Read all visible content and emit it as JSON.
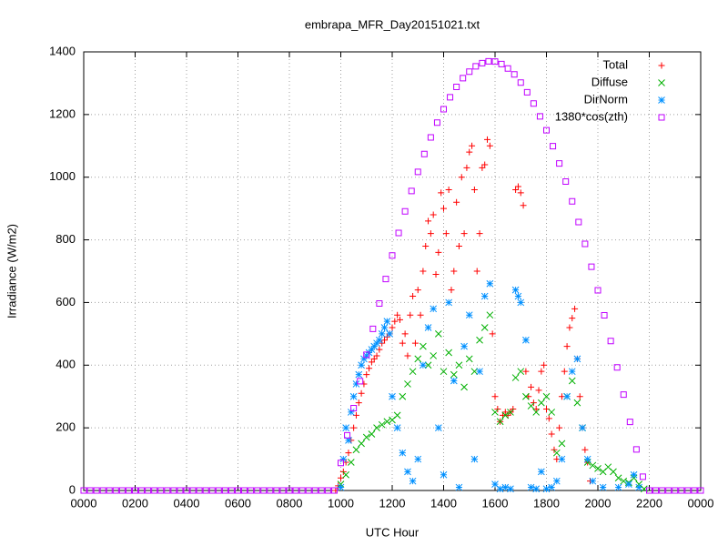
{
  "chart_data": {
    "type": "scatter",
    "title": "embrapa_MFR_Day20151021.txt",
    "x_label": "UTC Hour",
    "y_label": "Irradiance (W/m2)",
    "xlim": [
      0,
      24
    ],
    "ylim": [
      0,
      1400
    ],
    "xticks": [
      {
        "value": 0,
        "label": "0000"
      },
      {
        "value": 2,
        "label": "0200"
      },
      {
        "value": 4,
        "label": "0400"
      },
      {
        "value": 6,
        "label": "0600"
      },
      {
        "value": 8,
        "label": "0800"
      },
      {
        "value": 10,
        "label": "1000"
      },
      {
        "value": 12,
        "label": "1200"
      },
      {
        "value": 14,
        "label": "1400"
      },
      {
        "value": 16,
        "label": "1600"
      },
      {
        "value": 18,
        "label": "1800"
      },
      {
        "value": 20,
        "label": "2000"
      },
      {
        "value": 22,
        "label": "2200"
      },
      {
        "value": 24,
        "label": "0000"
      }
    ],
    "yticks": [
      0,
      200,
      400,
      600,
      800,
      1000,
      1200,
      1400
    ],
    "grid": true,
    "legend": "top-right",
    "series": [
      {
        "name": "Total",
        "color": "#ff0000",
        "marker": "plus",
        "x": [
          9.8,
          9.9,
          10.0,
          10.1,
          10.2,
          10.3,
          10.4,
          10.5,
          10.6,
          10.7,
          10.8,
          10.9,
          11.0,
          11.1,
          11.2,
          11.3,
          11.4,
          11.5,
          11.6,
          11.7,
          11.8,
          11.9,
          12.0,
          12.1,
          12.2,
          12.3,
          12.4,
          12.5,
          12.6,
          12.7,
          12.8,
          12.9,
          13.0,
          13.1,
          13.2,
          13.3,
          13.4,
          13.5,
          13.6,
          13.7,
          13.8,
          13.9,
          14.0,
          14.1,
          14.2,
          14.3,
          14.4,
          14.5,
          14.6,
          14.7,
          14.8,
          14.9,
          15.0,
          15.1,
          15.2,
          15.3,
          15.4,
          15.5,
          15.6,
          15.7,
          15.8,
          15.9,
          16.0,
          16.1,
          16.2,
          16.3,
          16.4,
          16.5,
          16.6,
          16.7,
          16.8,
          16.9,
          17.0,
          17.1,
          17.2,
          17.3,
          17.4,
          17.5,
          17.6,
          17.7,
          17.8,
          17.9,
          18.0,
          18.1,
          18.2,
          18.3,
          18.4,
          18.5,
          18.6,
          18.7,
          18.8,
          18.9,
          19.0,
          19.1,
          19.2,
          19.3,
          19.4,
          19.5,
          19.6,
          19.7
        ],
        "values": [
          0,
          15,
          40,
          60,
          90,
          120,
          160,
          200,
          240,
          280,
          310,
          340,
          370,
          390,
          410,
          420,
          430,
          450,
          470,
          480,
          490,
          500,
          520,
          540,
          560,
          545,
          470,
          500,
          430,
          560,
          620,
          470,
          640,
          560,
          700,
          780,
          860,
          820,
          880,
          690,
          760,
          950,
          900,
          820,
          960,
          640,
          700,
          920,
          780,
          1000,
          820,
          1030,
          1080,
          1100,
          960,
          700,
          820,
          1030,
          1040,
          1120,
          1100,
          500,
          300,
          260,
          220,
          240,
          250,
          240,
          250,
          260,
          960,
          970,
          950,
          910,
          380,
          300,
          330,
          280,
          260,
          320,
          380,
          400,
          260,
          230,
          180,
          130,
          100,
          200,
          300,
          380,
          460,
          520,
          550,
          580,
          420,
          300,
          200,
          130,
          90,
          30
        ]
      },
      {
        "name": "Diffuse",
        "color": "#00b000",
        "marker": "cross",
        "x": [
          10.0,
          10.2,
          10.4,
          10.6,
          10.8,
          11.0,
          11.2,
          11.4,
          11.6,
          11.8,
          12.0,
          12.2,
          12.4,
          12.6,
          12.8,
          13.0,
          13.2,
          13.4,
          13.6,
          13.8,
          14.0,
          14.2,
          14.4,
          14.6,
          14.8,
          15.0,
          15.2,
          15.4,
          15.6,
          15.8,
          16.0,
          16.2,
          16.4,
          16.6,
          16.8,
          17.0,
          17.2,
          17.4,
          17.6,
          17.8,
          18.0,
          18.2,
          18.4,
          18.6,
          18.8,
          19.0,
          19.2,
          19.4,
          19.6,
          19.8,
          20.0,
          20.2,
          20.4,
          20.6,
          20.8,
          21.0,
          21.2,
          21.4,
          21.6,
          21.8
        ],
        "values": [
          20,
          50,
          90,
          130,
          150,
          170,
          180,
          200,
          210,
          220,
          225,
          240,
          300,
          340,
          380,
          420,
          460,
          400,
          430,
          500,
          380,
          440,
          370,
          400,
          330,
          420,
          380,
          480,
          520,
          560,
          250,
          220,
          240,
          250,
          360,
          380,
          300,
          270,
          250,
          280,
          300,
          250,
          120,
          150,
          300,
          350,
          280,
          200,
          90,
          80,
          70,
          60,
          75,
          60,
          40,
          30,
          25,
          40,
          20,
          5
        ]
      },
      {
        "name": "DirNorm",
        "color": "#0090ff",
        "marker": "star",
        "x": [
          10.0,
          10.1,
          10.2,
          10.3,
          10.4,
          10.5,
          10.6,
          10.7,
          10.8,
          10.9,
          11.0,
          11.1,
          11.2,
          11.3,
          11.4,
          11.5,
          11.6,
          11.7,
          11.8,
          11.9,
          12.0,
          12.2,
          12.4,
          12.6,
          12.8,
          13.0,
          13.2,
          13.4,
          13.6,
          13.8,
          14.0,
          14.2,
          14.4,
          14.6,
          14.8,
          15.0,
          15.2,
          15.4,
          15.6,
          15.8,
          16.0,
          16.2,
          16.4,
          16.6,
          16.8,
          16.9,
          17.0,
          17.2,
          17.4,
          17.6,
          17.8,
          18.0,
          18.2,
          18.4,
          18.6,
          18.8,
          19.0,
          19.2,
          19.4,
          19.6,
          19.8,
          20.2,
          20.8,
          21.2,
          21.4,
          21.6
        ],
        "values": [
          10,
          100,
          200,
          160,
          250,
          300,
          340,
          370,
          400,
          420,
          430,
          440,
          450,
          460,
          470,
          480,
          500,
          520,
          540,
          500,
          300,
          200,
          120,
          60,
          30,
          100,
          400,
          520,
          580,
          200,
          50,
          600,
          350,
          10,
          460,
          560,
          100,
          380,
          620,
          660,
          20,
          5,
          10,
          5,
          640,
          620,
          600,
          480,
          10,
          5,
          60,
          5,
          10,
          30,
          100,
          300,
          380,
          420,
          200,
          100,
          30,
          10,
          10,
          20,
          50,
          10
        ]
      },
      {
        "name": "1380*cos(zth)",
        "color": "#c000ff",
        "marker": "square",
        "x": [
          0,
          0.25,
          0.5,
          0.75,
          1,
          1.25,
          1.5,
          1.75,
          2,
          2.25,
          2.5,
          2.75,
          3,
          3.25,
          3.5,
          3.75,
          4,
          4.25,
          4.5,
          4.75,
          5,
          5.25,
          5.5,
          5.75,
          6,
          6.25,
          6.5,
          6.75,
          7,
          7.25,
          7.5,
          7.75,
          8,
          8.25,
          8.5,
          8.75,
          9,
          9.25,
          9.5,
          9.75,
          10,
          10.25,
          10.5,
          10.75,
          11,
          11.25,
          11.5,
          11.75,
          12,
          12.25,
          12.5,
          12.75,
          13,
          13.25,
          13.5,
          13.75,
          14,
          14.25,
          14.5,
          14.75,
          15,
          15.25,
          15.5,
          15.75,
          16,
          16.25,
          16.5,
          16.75,
          17,
          17.25,
          17.5,
          17.75,
          18,
          18.25,
          18.5,
          18.75,
          19,
          19.25,
          19.5,
          19.75,
          20,
          20.25,
          20.5,
          20.75,
          21,
          21.25,
          21.5,
          21.75,
          22,
          22.25,
          22.5,
          22.75,
          23,
          23.25,
          23.5,
          23.75,
          24
        ],
        "values": [
          0,
          0,
          0,
          0,
          0,
          0,
          0,
          0,
          0,
          0,
          0,
          0,
          0,
          0,
          0,
          0,
          0,
          0,
          0,
          0,
          0,
          0,
          0,
          0,
          0,
          0,
          0,
          0,
          0,
          0,
          0,
          0,
          0,
          0,
          0,
          0,
          0,
          0,
          0,
          0,
          88,
          176,
          263,
          349,
          433,
          516,
          597,
          675,
          750,
          822,
          891,
          956,
          1017,
          1074,
          1127,
          1174,
          1217,
          1255,
          1288,
          1316,
          1337,
          1354,
          1364,
          1370,
          1369,
          1361,
          1347,
          1328,
          1302,
          1271,
          1235,
          1194,
          1150,
          1099,
          1044,
          986,
          923,
          857,
          787,
          714,
          639,
          559,
          477,
          393,
          306,
          219,
          131,
          44,
          0,
          0,
          0,
          0,
          0,
          0,
          0,
          0,
          0
        ]
      }
    ]
  }
}
